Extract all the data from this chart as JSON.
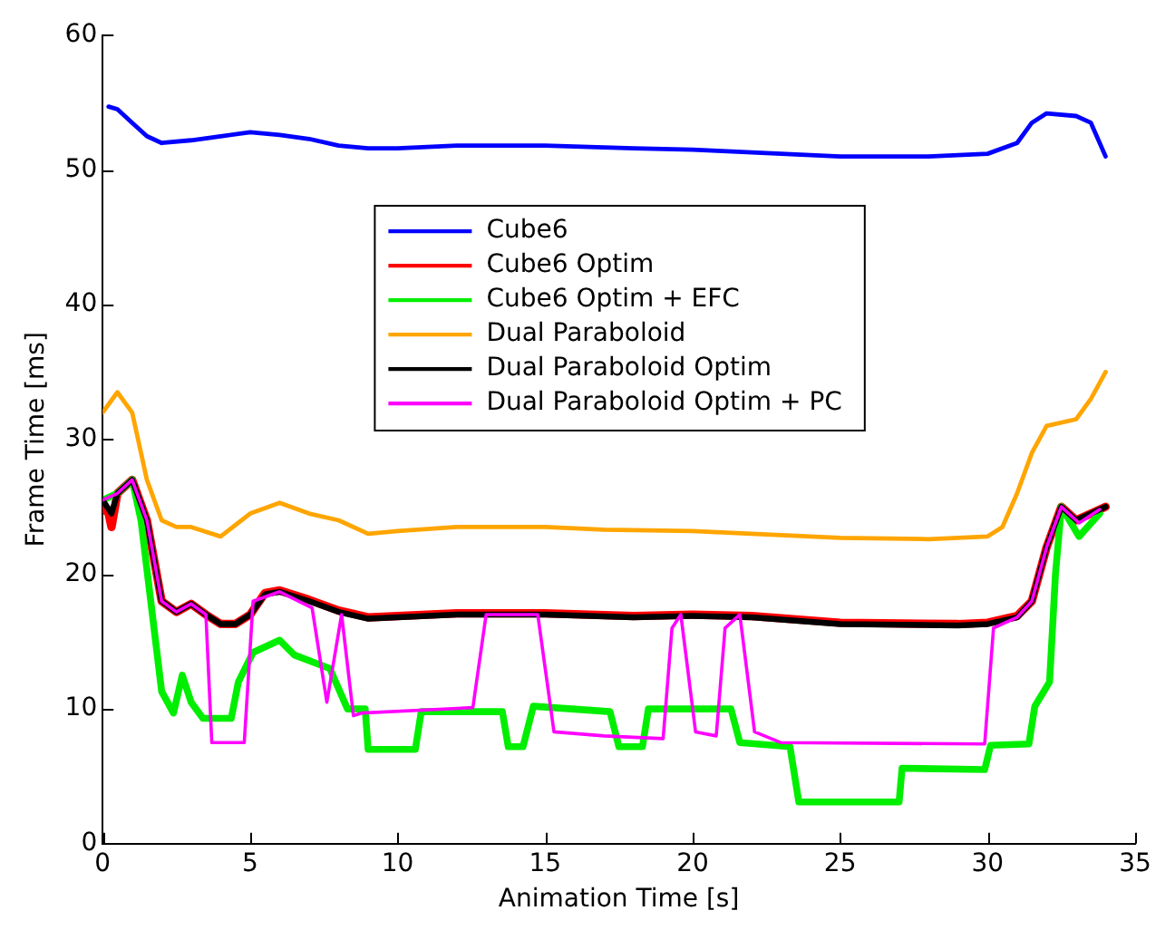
{
  "chart_data": {
    "type": "line",
    "xlabel": "Animation Time [s]",
    "ylabel": "Frame Time [ms]",
    "xlim": [
      0,
      35
    ],
    "xticks": [
      0,
      5,
      10,
      15,
      20,
      25,
      30,
      35
    ],
    "ylim": [
      0,
      60
    ],
    "yticks": [
      0,
      10,
      20,
      30,
      40,
      50,
      60
    ],
    "legend": "top",
    "marker": "none",
    "line_style": "solid",
    "series": [
      {
        "name": "Cube6",
        "color": "#0000ff",
        "x": [
          0.2,
          0.5,
          1,
          1.5,
          2,
          3,
          4,
          5,
          6,
          7,
          8,
          9,
          10,
          12,
          15,
          18,
          20,
          22,
          25,
          28,
          30,
          31,
          31.5,
          32,
          33,
          33.5,
          34
        ],
        "values": [
          54.7,
          54.5,
          53.5,
          52.5,
          52.0,
          52.2,
          52.5,
          52.8,
          52.6,
          52.3,
          51.8,
          51.6,
          51.6,
          51.8,
          51.8,
          51.6,
          51.5,
          51.3,
          51.0,
          51.0,
          51.2,
          52,
          53.5,
          54.2,
          54,
          53.5,
          51
        ]
      },
      {
        "name": "Cube6 Optim",
        "color": "#ff0000",
        "x": [
          0,
          0.2,
          0.3,
          0.5,
          1,
          1.5,
          2,
          2.5,
          3,
          3.5,
          4,
          4.5,
          5,
          5.5,
          6,
          7,
          8,
          9,
          10,
          12,
          15,
          18,
          20,
          22,
          25,
          29,
          30,
          31,
          31.5,
          32,
          32.5,
          33,
          34
        ],
        "values": [
          25,
          24.5,
          23.5,
          26,
          27,
          24,
          18,
          17.2,
          17.8,
          17,
          16.3,
          16.3,
          17,
          18.6,
          18.8,
          18.1,
          17.3,
          16.8,
          16.9,
          17.1,
          17.1,
          16.9,
          17,
          16.9,
          16.4,
          16.3,
          16.4,
          16.9,
          18,
          22,
          25,
          24,
          25
        ]
      },
      {
        "name": "Cube6 Optim + EFC",
        "color": "#00ee00",
        "x": [
          0,
          0.5,
          1,
          1.3,
          2,
          2.4,
          2.7,
          3,
          3.4,
          4.36,
          4.6,
          5.1,
          6,
          6.5,
          7.7,
          8.3,
          8.9,
          9,
          10.6,
          10.8,
          13.55,
          13.75,
          14.25,
          14.6,
          17.2,
          17.5,
          18.3,
          18.5,
          21.3,
          21.6,
          23.3,
          23.6,
          27,
          27.1,
          29.9,
          30.1,
          31.4,
          31.6,
          32.1,
          32.3,
          32.5,
          33.1,
          33.8
        ],
        "values": [
          25.5,
          26,
          27,
          24,
          11.3,
          9.7,
          12.5,
          10.5,
          9.3,
          9.3,
          12,
          14.2,
          15.1,
          14,
          13,
          10,
          10,
          7,
          7,
          9.8,
          9.8,
          7.2,
          7.2,
          10.2,
          9.8,
          7.2,
          7.2,
          10,
          10,
          7.5,
          7.2,
          3.1,
          3.1,
          5.6,
          5.5,
          7.3,
          7.4,
          10.2,
          12,
          20,
          25,
          22.8,
          24.5
        ]
      },
      {
        "name": "Dual Paraboloid",
        "color": "#ffa500",
        "x": [
          0,
          0.5,
          1,
          1.5,
          2,
          2.5,
          3,
          4,
          5,
          6,
          7,
          8,
          9,
          10,
          12,
          15,
          17,
          20,
          22,
          25,
          28,
          30,
          30.5,
          31,
          31.5,
          32,
          33,
          33.5,
          34
        ],
        "values": [
          32,
          33.5,
          32,
          27,
          24,
          23.5,
          23.5,
          22.8,
          24.5,
          25.3,
          24.5,
          24,
          23,
          23.2,
          23.5,
          23.5,
          23.3,
          23.2,
          23,
          22.7,
          22.6,
          22.8,
          23.5,
          26,
          29,
          31,
          31.5,
          33,
          35
        ]
      },
      {
        "name": "Dual Paraboloid Optim",
        "color": "#000000",
        "x": [
          0,
          0.3,
          0.5,
          1,
          1.5,
          2,
          2.5,
          3,
          3.5,
          4,
          4.5,
          5,
          5.5,
          6,
          7,
          8,
          9,
          10,
          12,
          15,
          18,
          20,
          22,
          25,
          29,
          30,
          31,
          31.5,
          32,
          32.5,
          33,
          34
        ],
        "values": [
          25.5,
          24.5,
          26,
          27,
          24,
          18,
          17.2,
          17.8,
          17,
          16.3,
          16.3,
          17,
          18.5,
          18.7,
          18,
          17.2,
          16.7,
          16.8,
          17,
          17,
          16.8,
          16.9,
          16.8,
          16.3,
          16.2,
          16.3,
          16.8,
          18,
          22,
          25,
          24,
          25
        ]
      },
      {
        "name": "Dual Paraboloid Optim + PC",
        "color": "#ff00ff",
        "x": [
          0,
          0.5,
          1,
          1.5,
          2,
          2.5,
          3,
          3.5,
          3.7,
          4.8,
          5.1,
          6,
          7.1,
          7.6,
          8.1,
          8.5,
          8.8,
          12.55,
          13,
          14.75,
          15.3,
          17,
          19,
          19.3,
          19.6,
          20.1,
          20.8,
          21.1,
          21.6,
          22.1,
          23,
          29.9,
          30.2,
          30.5,
          31,
          31.5,
          32,
          32.5,
          33.1,
          33.8
        ],
        "values": [
          25.5,
          26,
          27,
          24,
          18,
          17.2,
          17.8,
          17,
          7.5,
          7.5,
          18,
          18.7,
          17.5,
          10.5,
          17,
          9.5,
          9.7,
          10.1,
          17,
          17,
          8.3,
          8,
          7.8,
          16,
          17,
          8.3,
          8,
          16,
          17,
          8.3,
          7.5,
          7.4,
          16,
          16.3,
          16.8,
          18,
          22,
          25,
          23.8,
          24.8
        ]
      }
    ]
  }
}
